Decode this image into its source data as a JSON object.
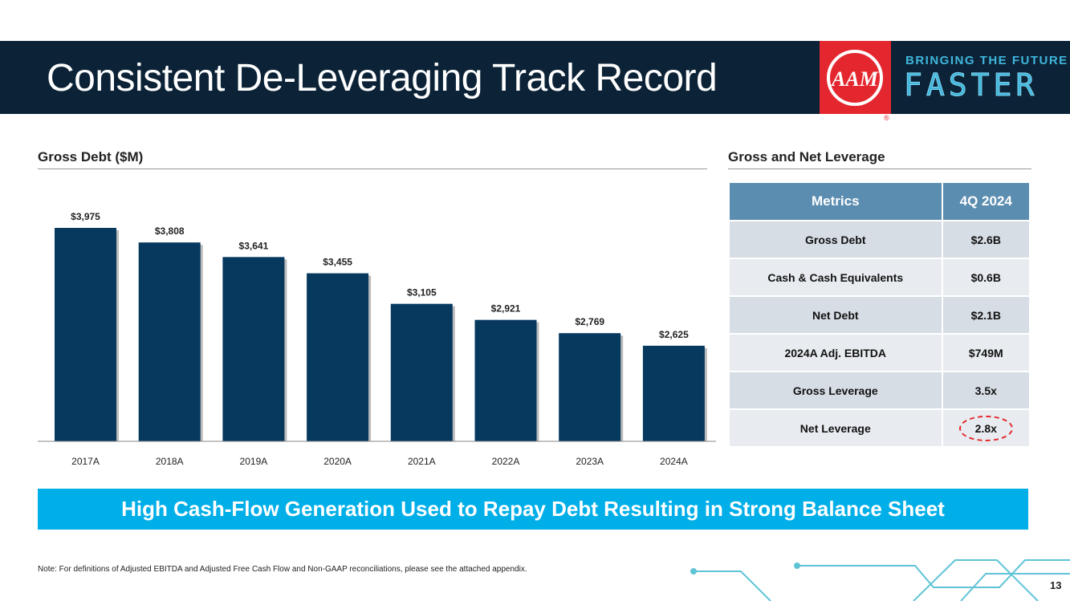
{
  "header": {
    "title": "Consistent De-Leveraging Track Record",
    "logo_text": "AAM",
    "tagline_top": "BRINGING THE FUTURE",
    "tagline_bottom": "FASTER",
    "registered": "®"
  },
  "chart_section_title": "Gross Debt ($M)",
  "chart_data": {
    "type": "bar",
    "title": "Gross Debt ($M)",
    "categories": [
      "2017A",
      "2018A",
      "2019A",
      "2020A",
      "2021A",
      "2022A",
      "2023A",
      "2024A"
    ],
    "values": [
      3975,
      3808,
      3641,
      3455,
      3105,
      2921,
      2769,
      2625
    ],
    "labels": [
      "$3,975",
      "$3,808",
      "$3,641",
      "$3,455",
      "$3,105",
      "$2,921",
      "$2,769",
      "$2,625"
    ],
    "ylim": [
      1530,
      4200
    ],
    "color": "#07395f",
    "grid": false
  },
  "table": {
    "title": "Gross and Net Leverage",
    "headers": [
      "Metrics",
      "4Q 2024"
    ],
    "rows": [
      [
        "Gross Debt",
        "$2.6B"
      ],
      [
        "Cash & Cash Equivalents",
        "$0.6B"
      ],
      [
        "Net Debt",
        "$2.1B"
      ],
      [
        "2024A Adj. EBITDA",
        "$749M"
      ],
      [
        "Gross Leverage",
        "3.5x"
      ],
      [
        "Net Leverage",
        "2.8x"
      ]
    ]
  },
  "banner": "High Cash-Flow Generation Used to Repay Debt Resulting in Strong Balance Sheet",
  "note": "Note: For definitions of Adjusted EBITDA and Adjusted Free Cash Flow and Non-GAAP reconciliations, please see the attached appendix.",
  "page_number": "13"
}
